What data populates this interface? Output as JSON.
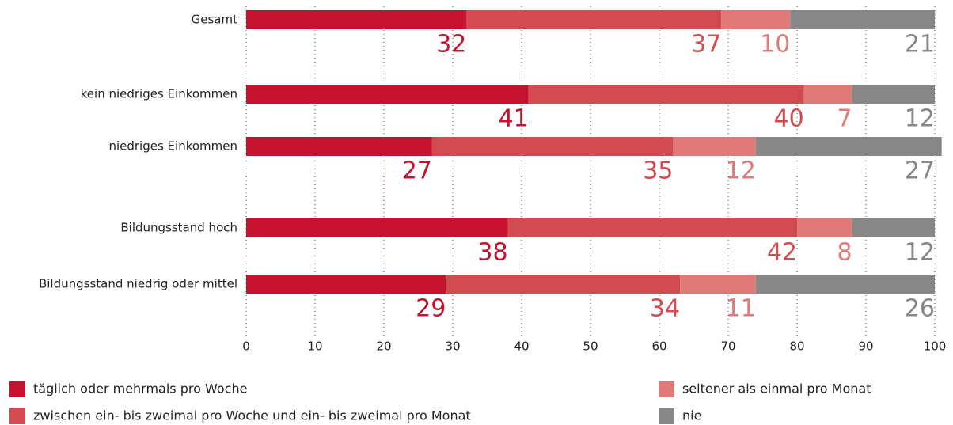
{
  "chart_data": {
    "type": "stacked-bar-horizontal",
    "categories": [
      "Gesamt",
      "kein niedriges Einkommen",
      "niedriges Einkommen",
      "Bildungsstand hoch",
      "Bildungsstand niedrig oder mittel"
    ],
    "series": [
      {
        "name": "täglich oder mehrmals pro Woche",
        "color": "#c4122f",
        "values": [
          32,
          41,
          27,
          38,
          29
        ]
      },
      {
        "name": "zwischen ein- bis zweimal pro Woche und ein- bis zweimal pro Monat",
        "color": "#d24b50",
        "values": [
          37,
          40,
          35,
          42,
          34
        ]
      },
      {
        "name": "seltener als einmal pro Monat",
        "color": "#e07a78",
        "values": [
          10,
          7,
          12,
          8,
          11
        ]
      },
      {
        "name": "nie",
        "color": "#878787",
        "values": [
          21,
          12,
          27,
          12,
          26
        ]
      }
    ],
    "xlim": [
      0,
      100
    ],
    "xticks": [
      0,
      10,
      20,
      30,
      40,
      50,
      60,
      70,
      80,
      90,
      100
    ],
    "grid": true
  }
}
